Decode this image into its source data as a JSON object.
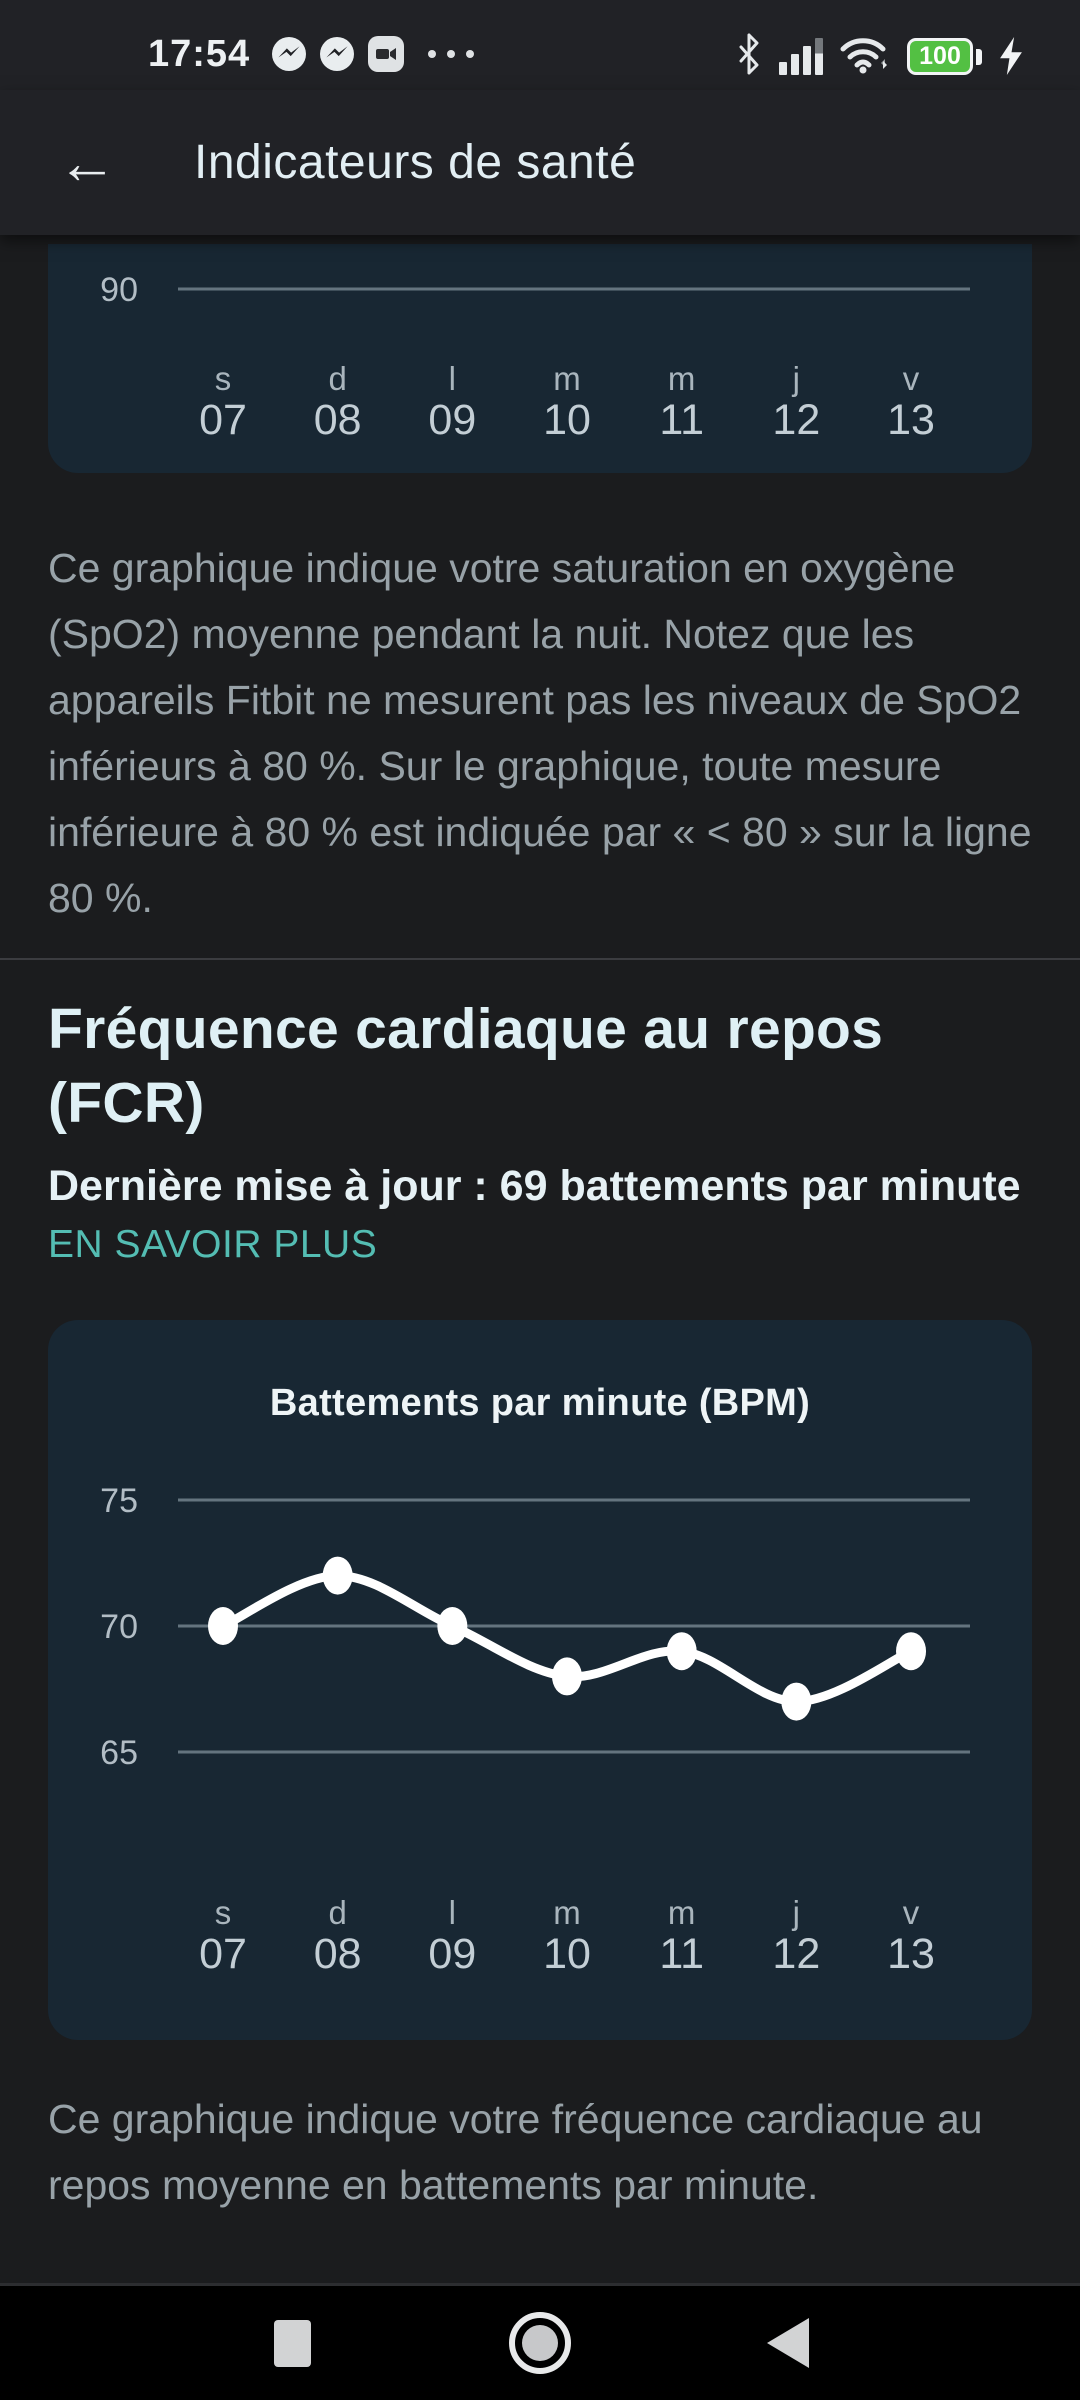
{
  "status_bar": {
    "time": "17:54",
    "battery_level": "100"
  },
  "header": {
    "title": "Indicateurs de santé"
  },
  "spo2_section": {
    "description": "Ce graphique indique votre saturation en oxygène (SpO2) moyenne pendant la nuit. Notez que les appareils Fitbit ne mesurent pas les niveaux de SpO2 inférieurs à 80 %. Sur le graphique, toute mesure inférieure à 80 % est indiquée par « < 80 » sur la ligne 80 %."
  },
  "fcr_section": {
    "title": "Fréquence cardiaque au repos (FCR)",
    "last_update": "Dernière mise à jour : 69 battements par minute",
    "learn_more": "EN SAVOIR PLUS",
    "description": "Ce graphique indique votre fréquence cardiaque au repos moyenne en battements par minute."
  },
  "chart_data": [
    {
      "type": "line",
      "id": "spo2",
      "title": "",
      "y_ticks": [
        "90"
      ],
      "categories_day": [
        "s",
        "d",
        "l",
        "m",
        "m",
        "j",
        "v"
      ],
      "categories_date": [
        "07",
        "08",
        "09",
        "10",
        "11",
        "12",
        "13"
      ],
      "values": []
    },
    {
      "type": "line",
      "id": "bpm",
      "title": "Battements par minute (BPM)",
      "y_ticks": [
        75,
        70,
        65
      ],
      "ylim": [
        63,
        77
      ],
      "categories_day": [
        "s",
        "d",
        "l",
        "m",
        "m",
        "j",
        "v"
      ],
      "categories_date": [
        "07",
        "08",
        "09",
        "10",
        "11",
        "12",
        "13"
      ],
      "values": [
        70,
        72,
        70,
        68,
        69,
        67,
        69
      ]
    }
  ],
  "colors": {
    "accent_teal": "#54bdb3",
    "card_bg": "#182733",
    "gridline": "#64747f",
    "line_series": "#ffffff",
    "battery_green": "#53c043"
  }
}
